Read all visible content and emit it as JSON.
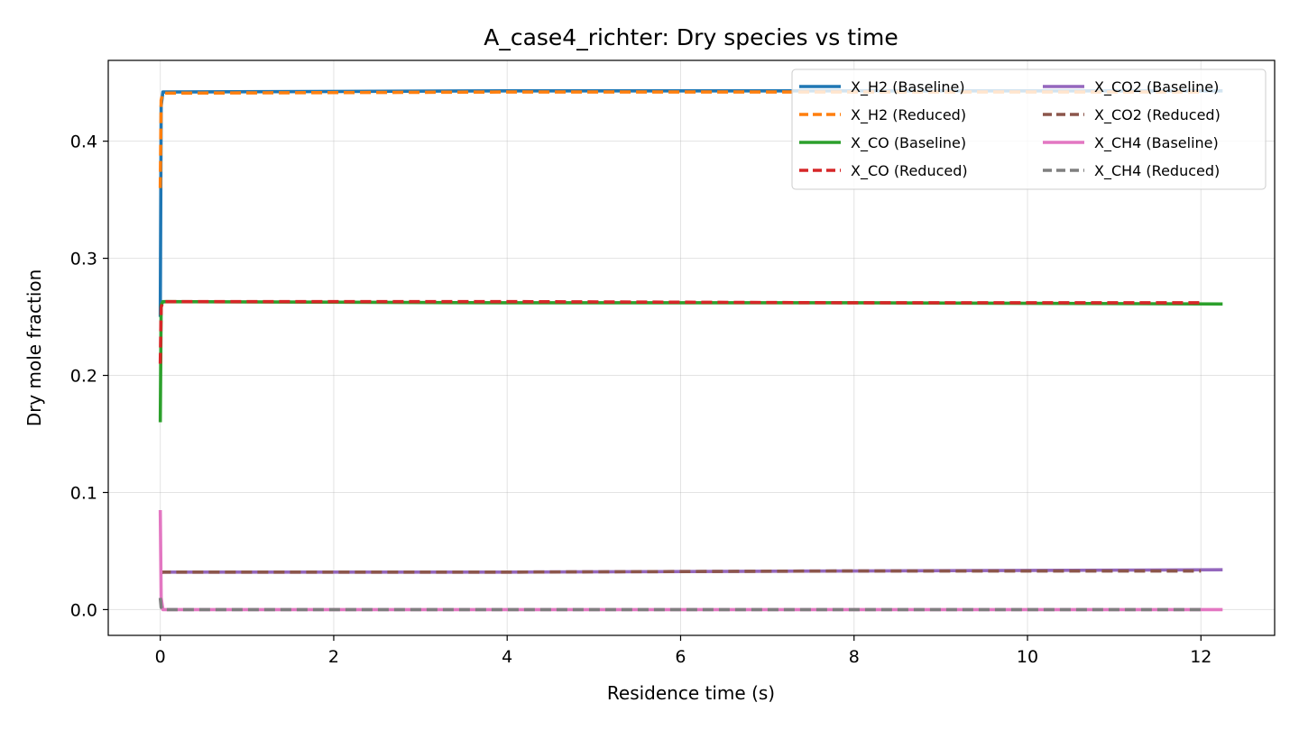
{
  "chart_data": {
    "type": "line",
    "title": "A_case4_richter: Dry species vs time",
    "xlabel": "Residence time (s)",
    "ylabel": "Dry mole fraction",
    "xlim": [
      -0.6,
      12.85
    ],
    "ylim": [
      -0.022,
      0.469
    ],
    "xticks": [
      0,
      2,
      4,
      6,
      8,
      10,
      12
    ],
    "yticks": [
      0.0,
      0.1,
      0.2,
      0.3,
      0.4
    ],
    "ytick_labels": [
      "0.0",
      "0.1",
      "0.2",
      "0.3",
      "0.4"
    ],
    "grid": true,
    "legend_position": "top-right",
    "legend_columns": 2,
    "series": [
      {
        "name": "X_H2 (Baseline)",
        "color": "#1f77b4",
        "dash": "solid",
        "x": [
          0,
          0.01,
          0.03,
          4,
          8,
          12.25
        ],
        "y": [
          0.25,
          0.43,
          0.442,
          0.443,
          0.443,
          0.443
        ]
      },
      {
        "name": "X_H2 (Reduced)",
        "color": "#ff7f0e",
        "dash": "dashed",
        "x": [
          0,
          0.01,
          0.03,
          4,
          8,
          12.0
        ],
        "y": [
          0.36,
          0.435,
          0.441,
          0.442,
          0.442,
          0.442
        ]
      },
      {
        "name": "X_CO (Baseline)",
        "color": "#2ca02c",
        "dash": "solid",
        "x": [
          0,
          0.01,
          0.03,
          4,
          8,
          12.25
        ],
        "y": [
          0.16,
          0.26,
          0.263,
          0.262,
          0.262,
          0.261
        ]
      },
      {
        "name": "X_CO (Reduced)",
        "color": "#d62728",
        "dash": "dashed",
        "x": [
          0,
          0.01,
          0.03,
          4,
          8,
          12.0
        ],
        "y": [
          0.21,
          0.258,
          0.263,
          0.263,
          0.262,
          0.262
        ]
      },
      {
        "name": "X_CO2 (Baseline)",
        "color": "#9467bd",
        "dash": "solid",
        "x": [
          0,
          0.03,
          4,
          8,
          12.25
        ],
        "y": [
          0.032,
          0.032,
          0.032,
          0.033,
          0.034
        ]
      },
      {
        "name": "X_CO2 (Reduced)",
        "color": "#8c564b",
        "dash": "dashed",
        "x": [
          0,
          0.03,
          4,
          8,
          12.0
        ],
        "y": [
          0.031,
          0.032,
          0.032,
          0.033,
          0.033
        ]
      },
      {
        "name": "X_CH4 (Baseline)",
        "color": "#e377c2",
        "dash": "solid",
        "x": [
          0,
          0.01,
          0.03,
          4,
          8,
          12.25
        ],
        "y": [
          0.085,
          0.01,
          0.0,
          0.0,
          0.0,
          0.0
        ]
      },
      {
        "name": "X_CH4 (Reduced)",
        "color": "#7f7f7f",
        "dash": "dashed",
        "x": [
          0,
          0.01,
          0.03,
          4,
          8,
          12.0
        ],
        "y": [
          0.01,
          0.002,
          0.0,
          0.0,
          0.0,
          0.0
        ]
      }
    ]
  }
}
